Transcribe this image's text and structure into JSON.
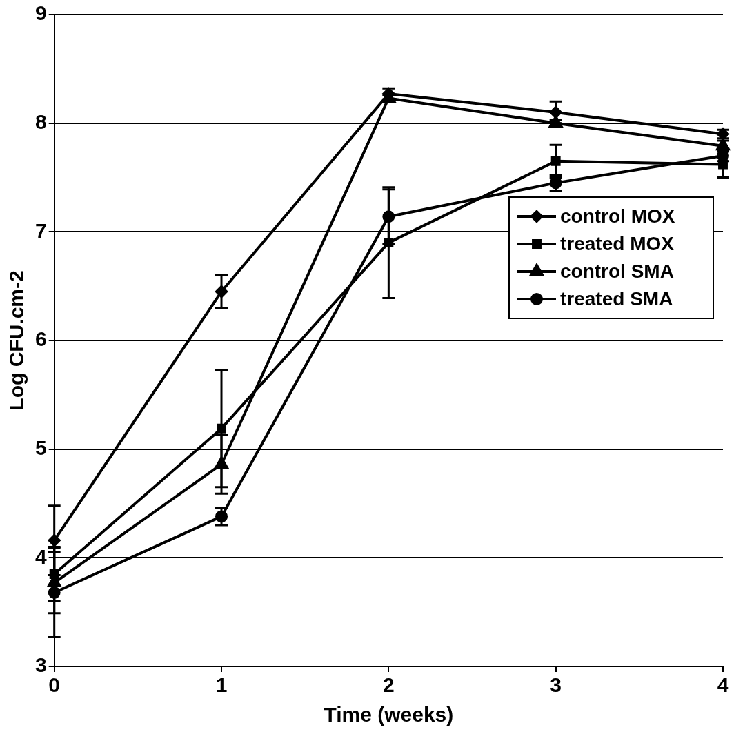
{
  "chart_data": {
    "type": "line",
    "xlabel": "Time (weeks)",
    "ylabel": "Log CFU.cm-2",
    "x": [
      0,
      1,
      2,
      3,
      4
    ],
    "xlim": [
      0,
      4
    ],
    "xticks": [
      0,
      1,
      2,
      3,
      4
    ],
    "ylim": [
      3,
      9
    ],
    "yticks": [
      3,
      4,
      5,
      6,
      7,
      8,
      9
    ],
    "grid": "y",
    "legend": "right",
    "line_style": "solid",
    "series": [
      {
        "name": "control MOX",
        "color": "#000000",
        "marker": "diamond",
        "values": [
          4.16,
          6.45,
          8.27,
          8.1,
          7.9
        ],
        "errors": [
          0.32,
          0.15,
          0.05,
          0.1,
          0.04
        ]
      },
      {
        "name": "treated MOX",
        "color": "#000000",
        "marker": "square",
        "values": [
          3.85,
          5.19,
          6.9,
          7.65,
          7.62
        ],
        "errors": [
          0.25,
          0.54,
          0.51,
          0.15,
          0.12
        ]
      },
      {
        "name": "control SMA",
        "color": "#000000",
        "marker": "triangle",
        "values": [
          3.77,
          4.86,
          8.23,
          8.0,
          7.79
        ],
        "errors": [
          0.28,
          0.27,
          0.03,
          0.03,
          0.05
        ]
      },
      {
        "name": "treated SMA",
        "color": "#000000",
        "marker": "circle",
        "values": [
          3.68,
          4.38,
          7.14,
          7.45,
          7.7
        ],
        "errors": [
          0.41,
          0.08,
          0.25,
          0.07,
          0.05
        ]
      }
    ]
  }
}
